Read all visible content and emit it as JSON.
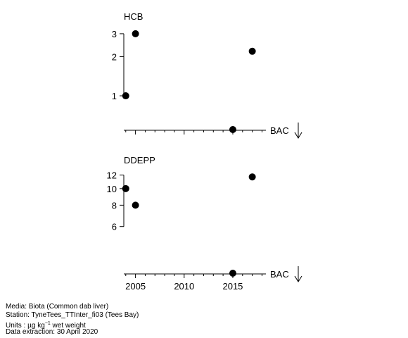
{
  "chart_data": [
    {
      "type": "scatter",
      "title": "HCB",
      "x": [
        2004,
        2005,
        2015,
        2017
      ],
      "y": [
        1.0,
        3.0,
        0.55,
        2.2
      ],
      "yscale": "log",
      "yticks": [
        1,
        2,
        3
      ],
      "ytick_labels": [
        "1",
        "2",
        "3"
      ],
      "xlim": [
        2003.8,
        2018.4
      ],
      "ylim": [
        0.55,
        3.15
      ],
      "annotation": "BAC",
      "annotation_marker": "down-arrow"
    },
    {
      "type": "scatter",
      "title": "DDEPP",
      "x": [
        2004,
        2005,
        2015,
        2017
      ],
      "y": [
        10.0,
        8.0,
        3.2,
        11.7
      ],
      "yscale": "log",
      "yticks": [
        6,
        8,
        10,
        12
      ],
      "ytick_labels": [
        "6",
        "8",
        "10",
        "12"
      ],
      "xlim": [
        2003.8,
        2018.4
      ],
      "ylim": [
        3.2,
        12.3
      ],
      "xticks": [
        2005,
        2010,
        2015
      ],
      "xtick_labels": [
        "2005",
        "2010",
        "2015"
      ],
      "annotation": "BAC",
      "annotation_marker": "down-arrow"
    }
  ],
  "footer": {
    "media": "Media: Biota (Common dab liver)",
    "station": "Station: TyneTees_TTInter_fi03 (Tees Bay)",
    "units_prefix": "Units : ",
    "units_mu": "µg kg",
    "units_exp": "−1",
    "units_suffix": " wet weight",
    "extraction": "Data extraction: 30 April 2020"
  },
  "colors": {
    "marker": "#000000",
    "axis": "#000000"
  }
}
